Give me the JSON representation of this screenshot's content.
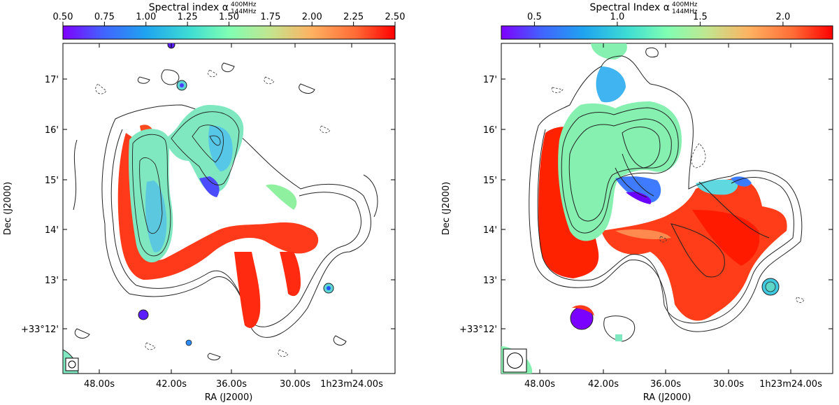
{
  "figure": {
    "panels": [
      {
        "colorbar": {
          "label": "Spectral index α",
          "label_sup": "400MHz",
          "label_sub": "144MHz",
          "ticks": [
            "0.50",
            "0.75",
            "1.00",
            "1.25",
            "1.50",
            "1.75",
            "2.00",
            "2.25",
            "2.50"
          ],
          "range": [
            0.5,
            2.5
          ]
        },
        "axes": {
          "xlabel": "RA (J2000)",
          "ylabel": "Dec (J2000)",
          "xticks": [
            "48.00s",
            "42.00s",
            "36.00s",
            "30.00s",
            "1h23m24.00s"
          ],
          "yticks": [
            "17'",
            "16'",
            "15'",
            "14'",
            "13'",
            "+33°12'"
          ]
        }
      },
      {
        "colorbar": {
          "label": "Spectral Index α",
          "label_sup": "400MHz",
          "label_sub": "144MHz",
          "ticks": [
            "0.5",
            "1.0",
            "1.5",
            "2.0"
          ],
          "range": [
            0.3,
            2.3
          ]
        },
        "axes": {
          "xlabel": "RA (J2000)",
          "ylabel": "Dec (J2000)",
          "xticks": [
            "48.00s",
            "42.00s",
            "36.00s",
            "30.00s",
            "1h23m24.00s"
          ],
          "yticks": [
            "17'",
            "16'",
            "15'",
            "14'",
            "13'",
            "+33°12'"
          ]
        }
      }
    ],
    "colors": {
      "low": "#6a00ff",
      "mid": "#8df3a8",
      "high": "#ff2200",
      "contour": "#222222"
    }
  }
}
